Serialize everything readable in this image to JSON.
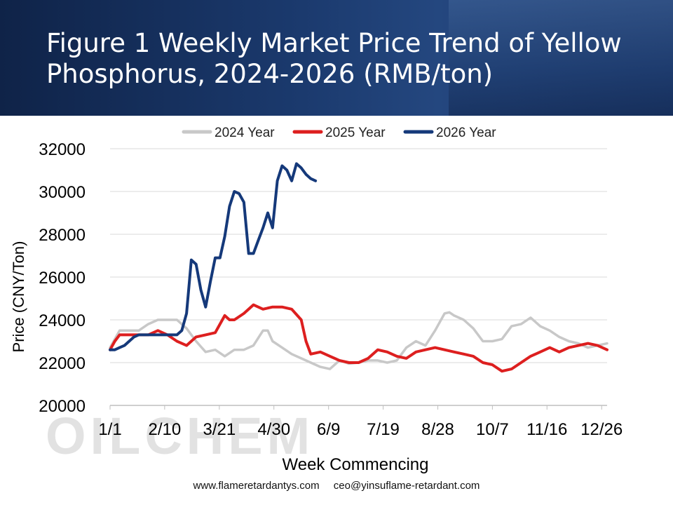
{
  "header": {
    "title": "Figure 1 Weekly Market Price Trend of Yellow Phosphorus, 2024-2026 (RMB/ton)"
  },
  "footer": {
    "website": "www.flameretardantys.com",
    "email": "ceo@yinsuflame-retardant.com"
  },
  "watermark": "OILCHEM",
  "chart_data": {
    "type": "line",
    "xlabel": "Week Commencing",
    "ylabel": "Price (CNY/Ton)",
    "ylim": [
      20000,
      32000
    ],
    "yticks": [
      20000,
      22000,
      24000,
      26000,
      28000,
      30000,
      32000
    ],
    "x_tick_labels": [
      "1/1",
      "2/10",
      "3/21",
      "4/30",
      "6/9",
      "7/19",
      "8/28",
      "10/7",
      "11/16",
      "12/26"
    ],
    "x_tick_weeks": [
      0,
      5.71,
      11.43,
      17.14,
      22.86,
      28.57,
      34.29,
      40,
      45.71,
      51.43
    ],
    "x_range_weeks": [
      0,
      52
    ],
    "grid": "horizontal",
    "legend_position": "top",
    "series": [
      {
        "name": "2024 Year",
        "color": "#c8c8c8",
        "x_weeks": [
          0,
          1,
          2,
          3,
          4,
          5,
          6,
          7,
          8,
          9,
          10,
          11,
          12,
          13,
          14,
          15,
          16,
          16.5,
          17,
          18,
          19,
          20,
          21,
          22,
          23,
          24,
          25,
          26,
          27,
          28,
          29,
          30,
          31,
          32,
          33,
          34,
          35,
          35.5,
          36,
          37,
          38,
          39,
          40,
          41,
          42,
          43,
          44,
          45,
          46,
          47,
          48,
          49,
          50,
          51,
          52
        ],
        "values": [
          22700,
          23500,
          23500,
          23500,
          23800,
          24000,
          24000,
          24000,
          23600,
          23000,
          22500,
          22600,
          22300,
          22600,
          22600,
          22800,
          23500,
          23500,
          23000,
          22700,
          22400,
          22200,
          22000,
          21800,
          21700,
          22100,
          21950,
          22000,
          22100,
          22100,
          22000,
          22100,
          22700,
          23000,
          22800,
          23500,
          24300,
          24350,
          24200,
          24000,
          23600,
          23000,
          23000,
          23100,
          23700,
          23800,
          24100,
          23700,
          23500,
          23200,
          23000,
          22900,
          22700,
          22800,
          22900
        ]
      },
      {
        "name": "2025 Year",
        "color": "#dd1f1f",
        "x_weeks": [
          0,
          0.5,
          1,
          2,
          3,
          4,
          5,
          6,
          7,
          8,
          8.5,
          9,
          10,
          11,
          12,
          12.5,
          13,
          14,
          15,
          16,
          17,
          18,
          19,
          20,
          20.5,
          21,
          22,
          23,
          24,
          25,
          26,
          27,
          28,
          29,
          30,
          31,
          32,
          33,
          34,
          35,
          36,
          37,
          38,
          39,
          40,
          41,
          42,
          43,
          44,
          45,
          46,
          47,
          48,
          49,
          50,
          51,
          52
        ],
        "values": [
          22600,
          23000,
          23300,
          23300,
          23300,
          23300,
          23500,
          23300,
          23000,
          22800,
          23000,
          23200,
          23300,
          23400,
          24200,
          24000,
          24000,
          24300,
          24700,
          24500,
          24600,
          24600,
          24500,
          24000,
          23000,
          22400,
          22500,
          22300,
          22100,
          22000,
          22000,
          22200,
          22600,
          22500,
          22300,
          22200,
          22500,
          22600,
          22700,
          22600,
          22500,
          22400,
          22300,
          22000,
          21900,
          21600,
          21700,
          22000,
          22300,
          22500,
          22700,
          22500,
          22700,
          22800,
          22900,
          22800,
          22600
        ]
      },
      {
        "name": "2026 Year",
        "color": "#15397a",
        "x_weeks": [
          0,
          0.5,
          1,
          1.5,
          2,
          2.5,
          3,
          4,
          5,
          6,
          7,
          7.5,
          8,
          8.5,
          9,
          9.5,
          10,
          10.5,
          11,
          11.5,
          12,
          12.5,
          13,
          13.5,
          14,
          14.5,
          15,
          15.5,
          16,
          16.5,
          17,
          17.5,
          18,
          18.5,
          19,
          19.5,
          20,
          20.5,
          21,
          21.5
        ],
        "values": [
          22600,
          22600,
          22700,
          22800,
          23000,
          23200,
          23300,
          23300,
          23300,
          23300,
          23300,
          23500,
          24300,
          26800,
          26600,
          25400,
          24600,
          25800,
          26900,
          26900,
          27900,
          29300,
          30000,
          29900,
          29500,
          27100,
          27100,
          27700,
          28300,
          29000,
          28300,
          30500,
          31200,
          31000,
          30500,
          31300,
          31100,
          30800,
          30600,
          30500
        ]
      }
    ]
  }
}
